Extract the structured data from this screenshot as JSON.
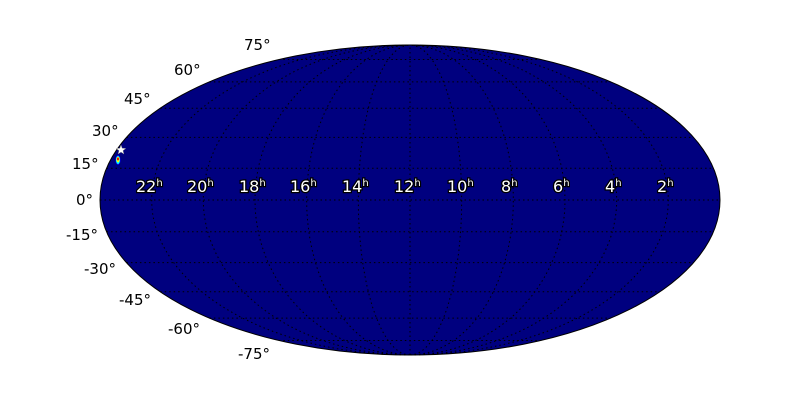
{
  "chart_data": {
    "type": "heatmap",
    "projection": "mollweide",
    "background_color": "#00007f",
    "grid": true,
    "grid_style": "dotted",
    "lat_tick_labels": [
      "75°",
      "60°",
      "45°",
      "30°",
      "15°",
      "0°",
      "-15°",
      "-30°",
      "-45°",
      "-60°",
      "-75°"
    ],
    "lat_ticks": [
      75,
      60,
      45,
      30,
      15,
      0,
      -15,
      -30,
      -45,
      -60,
      -75
    ],
    "ra_tick_labels": [
      {
        "value": "22",
        "unit": "h"
      },
      {
        "value": "20",
        "unit": "h"
      },
      {
        "value": "18",
        "unit": "h"
      },
      {
        "value": "16",
        "unit": "h"
      },
      {
        "value": "14",
        "unit": "h"
      },
      {
        "value": "12",
        "unit": "h"
      },
      {
        "value": "10",
        "unit": "h"
      },
      {
        "value": "8",
        "unit": "h"
      },
      {
        "value": "6",
        "unit": "h"
      },
      {
        "value": "4",
        "unit": "h"
      },
      {
        "value": "2",
        "unit": "h"
      }
    ],
    "ra_ticks_hours": [
      22,
      20,
      18,
      16,
      14,
      12,
      10,
      8,
      6,
      4,
      2
    ],
    "markers": [
      {
        "type": "star",
        "ra_hours": 23.7,
        "dec": 22,
        "color": "#ffffff"
      }
    ],
    "hotspots": [
      {
        "ra_hours": 23.8,
        "dec": 15,
        "colors": [
          "#ff0000",
          "#ffff00",
          "#00ffff",
          "#0000ff"
        ]
      }
    ]
  }
}
